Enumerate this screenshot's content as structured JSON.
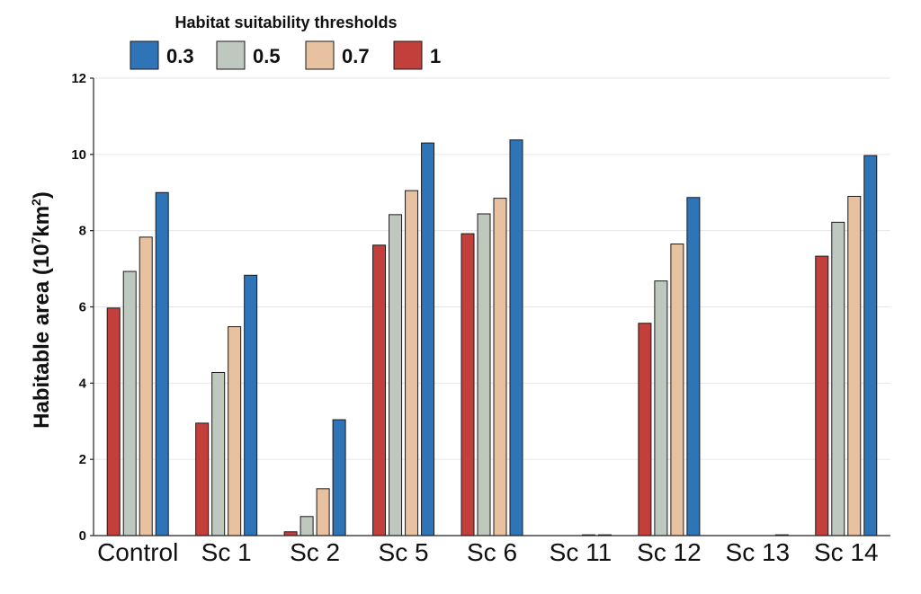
{
  "chart_data": {
    "type": "bar",
    "title": "",
    "xlabel": "",
    "ylabel_main": "Habitable area (10",
    "ylabel_sup": "7",
    "ylabel_tail": "km",
    "ylabel_sup2": "2",
    "ylabel_end": ")",
    "ylim": [
      0,
      12
    ],
    "yticks": [
      "0",
      "2",
      "4",
      "6",
      "8",
      "10",
      "12"
    ],
    "grid": true,
    "legend": {
      "title": "Habitat suitability thresholds",
      "placement": "top-left",
      "entries": [
        {
          "label": "0.3",
          "color": "#3074B8"
        },
        {
          "label": "0.5",
          "color": "#BFC8BE"
        },
        {
          "label": "0.7",
          "color": "#E8C2A0"
        },
        {
          "label": "1",
          "color": "#C23F3B"
        }
      ]
    },
    "categories": [
      "Control",
      "Sc 1",
      "Sc 2",
      "Sc 5",
      "Sc 6",
      "Sc 11",
      "Sc 12",
      "Sc 13",
      "Sc 14"
    ],
    "bar_order": [
      "1",
      "0.5",
      "0.7",
      "0.3"
    ],
    "series": [
      {
        "name": "1",
        "color": "#C23F3B",
        "values": [
          5.97,
          2.95,
          0.1,
          7.62,
          7.92,
          0.0,
          5.57,
          0.0,
          7.33
        ]
      },
      {
        "name": "0.5",
        "color": "#BFC8BE",
        "values": [
          6.93,
          4.28,
          0.5,
          8.42,
          8.44,
          0.0,
          6.68,
          0.0,
          8.22
        ]
      },
      {
        "name": "0.7",
        "color": "#E8C2A0",
        "values": [
          7.83,
          5.48,
          1.23,
          9.05,
          8.85,
          0.02,
          7.65,
          0.0,
          8.9
        ]
      },
      {
        "name": "0.3",
        "color": "#3074B8",
        "values": [
          9.0,
          6.83,
          3.04,
          10.3,
          10.38,
          0.02,
          8.87,
          0.02,
          9.97
        ]
      }
    ]
  }
}
